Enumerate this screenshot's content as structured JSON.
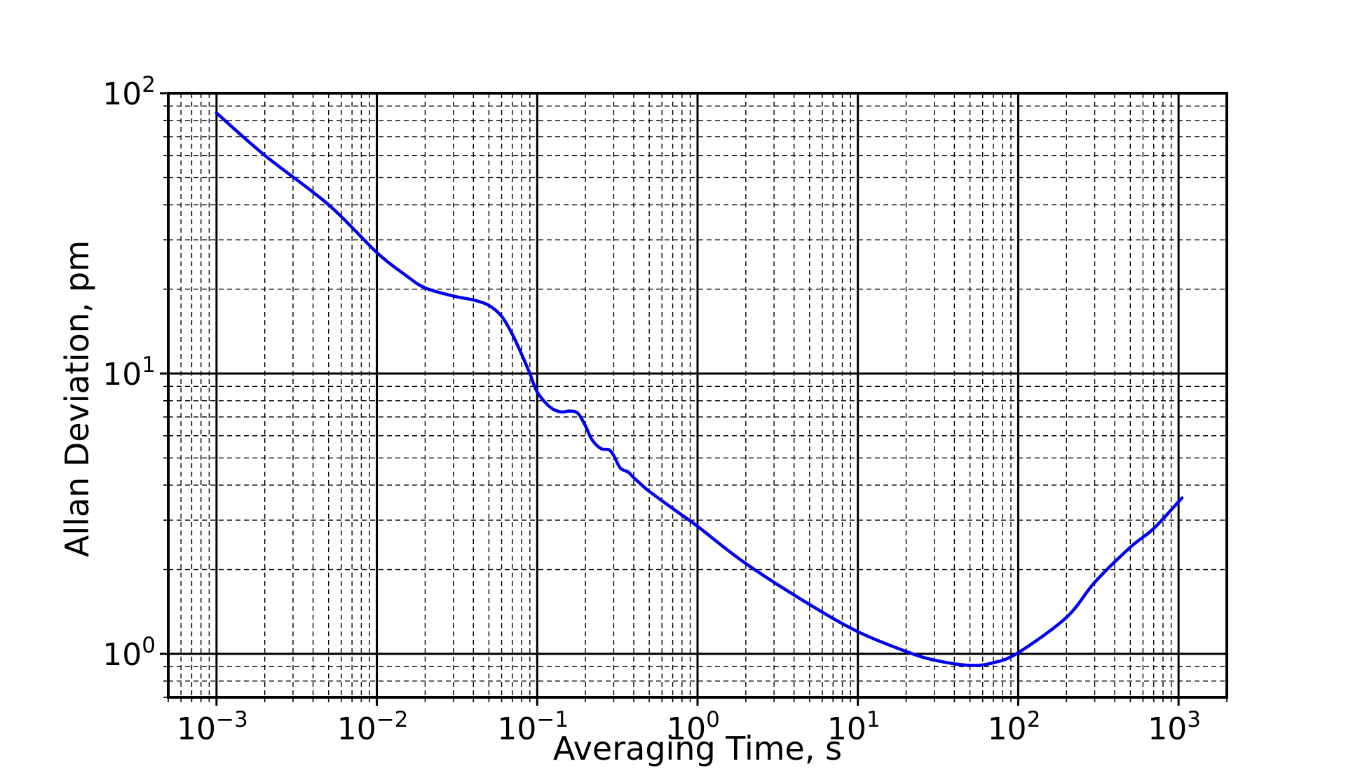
{
  "chart_data": {
    "type": "line",
    "title": "",
    "xlabel": "Averaging Time, s",
    "ylabel": "Allan Deviation, pm",
    "xscale": "log",
    "yscale": "log",
    "xlim": [
      0.0005,
      2000
    ],
    "ylim": [
      0.7,
      100
    ],
    "grid": true,
    "legend": "none",
    "x_ticks": [
      {
        "value": 0.001,
        "base": "10",
        "exp": "−3"
      },
      {
        "value": 0.01,
        "base": "10",
        "exp": "−2"
      },
      {
        "value": 0.1,
        "base": "10",
        "exp": "−1"
      },
      {
        "value": 1,
        "base": "10",
        "exp": "0"
      },
      {
        "value": 10,
        "base": "10",
        "exp": "1"
      },
      {
        "value": 100,
        "base": "10",
        "exp": "2"
      },
      {
        "value": 1000,
        "base": "10",
        "exp": "3"
      }
    ],
    "y_ticks": [
      {
        "value": 1,
        "base": "10",
        "exp": "0"
      },
      {
        "value": 10,
        "base": "10",
        "exp": "1"
      },
      {
        "value": 100,
        "base": "10",
        "exp": "2"
      }
    ],
    "series": [
      {
        "color": "#0000ee",
        "x": [
          0.001,
          0.002,
          0.005,
          0.01,
          0.015,
          0.02,
          0.03,
          0.04,
          0.05,
          0.06,
          0.07,
          0.08,
          0.09,
          0.1,
          0.12,
          0.14,
          0.16,
          0.18,
          0.2,
          0.22,
          0.25,
          0.28,
          0.3,
          0.33,
          0.37,
          0.4,
          0.45,
          0.5,
          0.7,
          1,
          2,
          5,
          10,
          20,
          30,
          50,
          70,
          100,
          200,
          300,
          500,
          700,
          1050
        ],
        "y": [
          85,
          60,
          40,
          27,
          22.5,
          20.2,
          18.9,
          18.3,
          17.5,
          16,
          13.8,
          11.7,
          10,
          8.6,
          7.6,
          7.3,
          7.35,
          7.2,
          6.5,
          5.8,
          5.4,
          5.35,
          5.1,
          4.6,
          4.45,
          4.25,
          4.0,
          3.8,
          3.3,
          2.85,
          2.1,
          1.5,
          1.2,
          1.02,
          0.95,
          0.91,
          0.93,
          1.01,
          1.35,
          1.8,
          2.4,
          2.8,
          3.6
        ]
      }
    ]
  }
}
